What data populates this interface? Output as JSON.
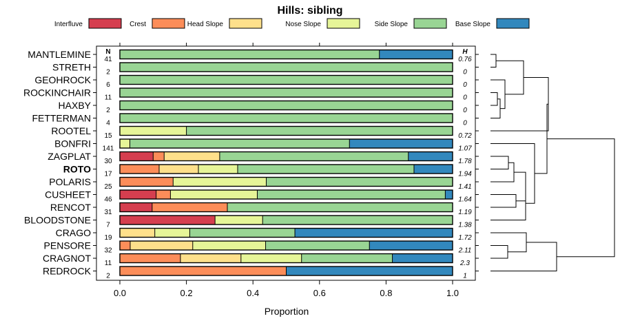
{
  "chart_data": {
    "type": "bar",
    "orientation": "horizontal-stacked",
    "title": "Hills: sibling",
    "xlabel": "Proportion",
    "xlim": [
      0,
      1
    ],
    "xticks": [
      "0.0",
      "0.2",
      "0.4",
      "0.6",
      "0.8",
      "1.0"
    ],
    "n_header": "N",
    "h_header": "H",
    "legend": [
      {
        "name": "Interfluve",
        "color": "#d53e4f"
      },
      {
        "name": "Crest",
        "color": "#fc8d59"
      },
      {
        "name": "Head Slope",
        "color": "#fee08b"
      },
      {
        "name": "Nose Slope",
        "color": "#e6f598"
      },
      {
        "name": "Side Slope",
        "color": "#99d594"
      },
      {
        "name": "Base Slope",
        "color": "#3288bd"
      }
    ],
    "rows": [
      {
        "label": "MANTLEMINE",
        "n": "41",
        "h": "0.76",
        "bold": false,
        "values": [
          0,
          0,
          0,
          0,
          0.78,
          0.22
        ]
      },
      {
        "label": "STRETH",
        "n": "2",
        "h": "0",
        "bold": false,
        "values": [
          0,
          0,
          0,
          0,
          1.0,
          0
        ]
      },
      {
        "label": "GEOHROCK",
        "n": "6",
        "h": "0",
        "bold": false,
        "values": [
          0,
          0,
          0,
          0,
          1.0,
          0
        ]
      },
      {
        "label": "ROCKINCHAIR",
        "n": "11",
        "h": "0",
        "bold": false,
        "values": [
          0,
          0,
          0,
          0,
          1.0,
          0
        ]
      },
      {
        "label": "HAXBY",
        "n": "2",
        "h": "0",
        "bold": false,
        "values": [
          0,
          0,
          0,
          0,
          1.0,
          0
        ]
      },
      {
        "label": "FETTERMAN",
        "n": "4",
        "h": "0",
        "bold": false,
        "values": [
          0,
          0,
          0,
          0,
          1.0,
          0
        ]
      },
      {
        "label": "ROOTEL",
        "n": "15",
        "h": "0.72",
        "bold": false,
        "values": [
          0,
          0,
          0,
          0.2,
          0.8,
          0
        ]
      },
      {
        "label": "BONFRI",
        "n": "141",
        "h": "1.07",
        "bold": false,
        "values": [
          0,
          0,
          0,
          0.03,
          0.66,
          0.31
        ]
      },
      {
        "label": "ZAGPLAT",
        "n": "30",
        "h": "1.78",
        "bold": false,
        "values": [
          0.1,
          0.033,
          0.167,
          0,
          0.567,
          0.133
        ]
      },
      {
        "label": "ROTO",
        "n": "17",
        "h": "1.94",
        "bold": true,
        "values": [
          0,
          0.118,
          0.118,
          0.118,
          0.53,
          0.116
        ]
      },
      {
        "label": "POLARIS",
        "n": "25",
        "h": "1.41",
        "bold": false,
        "values": [
          0,
          0.16,
          0,
          0.28,
          0.56,
          0
        ]
      },
      {
        "label": "CUSHEET",
        "n": "46",
        "h": "1.64",
        "bold": false,
        "values": [
          0.109,
          0.043,
          0,
          0.261,
          0.565,
          0.022
        ]
      },
      {
        "label": "RENCOT",
        "n": "31",
        "h": "1.19",
        "bold": false,
        "values": [
          0.097,
          0.226,
          0,
          0,
          0.677,
          0
        ]
      },
      {
        "label": "BLOODSTONE",
        "n": "7",
        "h": "1.38",
        "bold": false,
        "values": [
          0.286,
          0,
          0,
          0.143,
          0.571,
          0
        ]
      },
      {
        "label": "CRAGO",
        "n": "19",
        "h": "1.72",
        "bold": false,
        "values": [
          0,
          0,
          0.105,
          0.105,
          0.316,
          0.474
        ]
      },
      {
        "label": "PENSORE",
        "n": "32",
        "h": "2.11",
        "bold": false,
        "values": [
          0,
          0.031,
          0.188,
          0.219,
          0.312,
          0.25
        ]
      },
      {
        "label": "CRAGNOT",
        "n": "11",
        "h": "2.3",
        "bold": false,
        "values": [
          0,
          0.182,
          0.182,
          0.182,
          0.273,
          0.181
        ]
      },
      {
        "label": "REDROCK",
        "n": "2",
        "h": "1",
        "bold": false,
        "values": [
          0,
          0.5,
          0,
          0,
          0,
          0.5
        ]
      }
    ]
  }
}
